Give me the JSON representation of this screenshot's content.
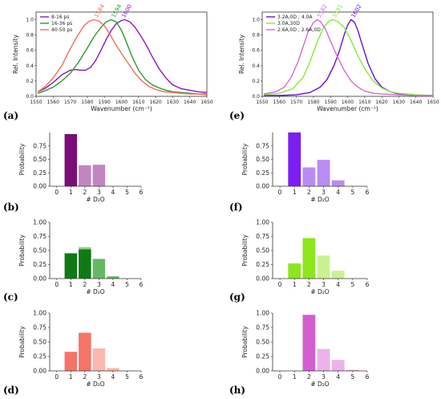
{
  "panel_labels": [
    "(a)",
    "(b)",
    "(c)",
    "(d)",
    "(e)",
    "(f)",
    "(g)",
    "(h)"
  ],
  "chart_data": [
    {
      "id": "a",
      "type": "line",
      "xlabel": "Wavenumber (cm⁻¹)",
      "ylabel": "Rel. Intensity",
      "xlim": [
        1550,
        1650
      ],
      "ylim": [
        0,
        1.1
      ],
      "xticks": [
        1550,
        1560,
        1570,
        1580,
        1590,
        1600,
        1610,
        1620,
        1630,
        1640,
        1650
      ],
      "yticks": [
        0.0,
        0.2,
        0.4,
        0.6,
        0.8,
        1.0
      ],
      "legend_position": "top-left",
      "series": [
        {
          "name": "8-16 ps",
          "color": "#8b1bbf",
          "x": [
            1551,
            1555,
            1560,
            1565,
            1570,
            1573,
            1576,
            1579,
            1582,
            1585,
            1588,
            1591,
            1594,
            1597,
            1600,
            1602,
            1605,
            1608,
            1611,
            1614,
            1618,
            1622,
            1626,
            1630,
            1635,
            1640,
            1645,
            1650
          ],
          "y": [
            0.06,
            0.1,
            0.18,
            0.28,
            0.34,
            0.35,
            0.34,
            0.34,
            0.38,
            0.47,
            0.6,
            0.74,
            0.86,
            0.95,
            0.99,
            1.0,
            0.97,
            0.9,
            0.8,
            0.69,
            0.52,
            0.36,
            0.24,
            0.15,
            0.1,
            0.08,
            0.06,
            0.05
          ]
        },
        {
          "name": "16-36 ps",
          "color": "#2e9a2e",
          "x": [
            1551,
            1555,
            1560,
            1565,
            1570,
            1575,
            1580,
            1584,
            1588,
            1591,
            1594,
            1597,
            1600,
            1603,
            1606,
            1610,
            1614,
            1618,
            1622,
            1626,
            1630,
            1635,
            1640,
            1645,
            1650
          ],
          "y": [
            0.04,
            0.07,
            0.12,
            0.2,
            0.3,
            0.45,
            0.63,
            0.78,
            0.9,
            0.97,
            1.0,
            0.97,
            0.86,
            0.7,
            0.53,
            0.34,
            0.22,
            0.15,
            0.11,
            0.08,
            0.06,
            0.05,
            0.04,
            0.03,
            0.03
          ]
        },
        {
          "name": "40-50 ps",
          "color": "#f36f5a",
          "x": [
            1551,
            1555,
            1560,
            1565,
            1570,
            1574,
            1578,
            1581,
            1584,
            1587,
            1590,
            1593,
            1596,
            1600,
            1604,
            1608,
            1612,
            1616,
            1620,
            1625,
            1630,
            1635,
            1640,
            1645,
            1650
          ],
          "y": [
            0.06,
            0.12,
            0.24,
            0.4,
            0.62,
            0.78,
            0.92,
            0.98,
            1.0,
            0.98,
            0.92,
            0.82,
            0.7,
            0.56,
            0.43,
            0.3,
            0.2,
            0.13,
            0.09,
            0.06,
            0.05,
            0.04,
            0.03,
            0.03,
            0.02
          ]
        }
      ],
      "annotations": [
        {
          "text": "1584",
          "x": 1584,
          "color": "#f36f5a"
        },
        {
          "text": "1594",
          "x": 1594,
          "color": "#2e9a2e"
        },
        {
          "text": "1600",
          "x": 1600,
          "color": "#8b1bbf"
        }
      ]
    },
    {
      "id": "e",
      "type": "line",
      "xlabel": "Wavenumber (cm⁻¹)",
      "ylabel": "Rel. Intensity",
      "xlim": [
        1550,
        1650
      ],
      "ylim": [
        0,
        1.1
      ],
      "xticks": [
        1550,
        1560,
        1570,
        1580,
        1590,
        1600,
        1610,
        1620,
        1630,
        1640,
        1650
      ],
      "yticks": [
        0.0,
        0.2,
        0.4,
        0.6,
        0.8,
        1.0
      ],
      "legend_position": "top-left",
      "series": [
        {
          "name": "3.2A,0D ; 4.0A",
          "color": "#6a0fd6",
          "x": [
            1551,
            1560,
            1570,
            1578,
            1584,
            1588,
            1592,
            1595,
            1598,
            1600,
            1602,
            1604,
            1606,
            1609,
            1612,
            1616,
            1620,
            1625,
            1630,
            1640,
            1650
          ],
          "y": [
            0.01,
            0.01,
            0.02,
            0.05,
            0.12,
            0.22,
            0.4,
            0.58,
            0.8,
            0.93,
            1.0,
            0.97,
            0.86,
            0.64,
            0.43,
            0.23,
            0.12,
            0.06,
            0.03,
            0.01,
            0.01
          ]
        },
        {
          "name": "3.0A,30D",
          "color": "#88e83a",
          "x": [
            1551,
            1560,
            1568,
            1574,
            1578,
            1582,
            1586,
            1589,
            1591,
            1594,
            1598,
            1602,
            1606,
            1610,
            1615,
            1620,
            1625,
            1630,
            1640,
            1650
          ],
          "y": [
            0.02,
            0.04,
            0.1,
            0.25,
            0.45,
            0.7,
            0.9,
            0.98,
            1.0,
            0.98,
            0.9,
            0.73,
            0.53,
            0.36,
            0.2,
            0.11,
            0.06,
            0.04,
            0.02,
            0.01
          ]
        },
        {
          "name": "2.6A,0D ; 2.6A,0D",
          "color": "#d36ad8",
          "x": [
            1551,
            1558,
            1563,
            1567,
            1571,
            1574,
            1577,
            1580,
            1582,
            1584,
            1587,
            1590,
            1594,
            1598,
            1602,
            1606,
            1610,
            1615,
            1620,
            1630,
            1640,
            1650
          ],
          "y": [
            0.03,
            0.06,
            0.12,
            0.25,
            0.45,
            0.65,
            0.85,
            0.96,
            1.0,
            0.98,
            0.88,
            0.72,
            0.52,
            0.34,
            0.2,
            0.12,
            0.07,
            0.04,
            0.03,
            0.02,
            0.01,
            0.01
          ]
        }
      ],
      "annotations": [
        {
          "text": "1582",
          "x": 1582,
          "color": "#d36ad8"
        },
        {
          "text": "1591",
          "x": 1591,
          "color": "#88e83a"
        },
        {
          "text": "1602",
          "x": 1602,
          "color": "#6a0fd6"
        }
      ]
    },
    {
      "id": "b",
      "type": "bar",
      "xlabel": "# D₂O",
      "ylabel": "Probability",
      "xlim": [
        -0.5,
        6
      ],
      "ylim": [
        0,
        1.0
      ],
      "xticks": [
        0,
        1,
        2,
        3,
        4,
        5,
        6
      ],
      "yticks": [
        0.0,
        0.25,
        0.5,
        0.75
      ],
      "ytick_labels": [
        "0.00",
        "0.25",
        "0.50",
        "0.75"
      ],
      "bars": [
        {
          "x": 1,
          "value": 0.97,
          "color": "#7b0e76"
        },
        {
          "x": 2,
          "value": 0.02,
          "color": "#7b0e76"
        },
        {
          "x": 2,
          "value": 0.39,
          "color": "#c086c0"
        },
        {
          "x": 3,
          "value": 0.4,
          "color": "#c086c0"
        }
      ]
    },
    {
      "id": "c",
      "type": "bar",
      "xlabel": "# D₂O",
      "ylabel": "Probability",
      "xlim": [
        -0.5,
        6
      ],
      "ylim": [
        0,
        1.0
      ],
      "xticks": [
        0,
        1,
        2,
        3,
        4,
        5,
        6
      ],
      "yticks": [
        0.0,
        0.25,
        0.5,
        0.75,
        1.0
      ],
      "ytick_labels": [
        "0.00",
        "0.25",
        "0.50",
        "0.75",
        "1.00"
      ],
      "bars": [
        {
          "x": 1,
          "value": 0.45,
          "color": "#0f7a14"
        },
        {
          "x": 2,
          "value": 0.56,
          "color": "#8ed28e"
        },
        {
          "x": 2,
          "value": 0.52,
          "color": "#0f7a14"
        },
        {
          "x": 3,
          "value": 0.35,
          "color": "#64b864"
        },
        {
          "x": 4,
          "value": 0.04,
          "color": "#64b864"
        }
      ]
    },
    {
      "id": "d",
      "type": "bar",
      "xlabel": "# D₂O",
      "ylabel": "Probability",
      "xlim": [
        -0.5,
        6
      ],
      "ylim": [
        0,
        1.0
      ],
      "xticks": [
        0,
        1,
        2,
        3,
        4,
        5,
        6
      ],
      "yticks": [
        0.0,
        0.25,
        0.5,
        0.75,
        1.0
      ],
      "ytick_labels": [
        "0.00",
        "0.25",
        "0.50",
        "0.75",
        "1.00"
      ],
      "bars": [
        {
          "x": 1,
          "value": 0.33,
          "color": "#f57468"
        },
        {
          "x": 2,
          "value": 0.66,
          "color": "#f57468"
        },
        {
          "x": 3,
          "value": 0.39,
          "color": "#f9b8b0"
        },
        {
          "x": 4,
          "value": 0.05,
          "color": "#f9b8b0"
        }
      ]
    },
    {
      "id": "f",
      "type": "bar",
      "xlabel": "# D₂O",
      "ylabel": "Probability",
      "xlim": [
        -0.5,
        6
      ],
      "ylim": [
        0,
        1.0
      ],
      "xticks": [
        0,
        1,
        2,
        3,
        4,
        5,
        6
      ],
      "yticks": [
        0.0,
        0.25,
        0.5,
        0.75
      ],
      "ytick_labels": [
        "0.00",
        "0.25",
        "0.50",
        "0.75"
      ],
      "bars": [
        {
          "x": 1,
          "value": 1.0,
          "color": "#7c1ef0"
        },
        {
          "x": 2,
          "value": 0.35,
          "color": "#b98bf5"
        },
        {
          "x": 3,
          "value": 0.49,
          "color": "#b98bf5"
        },
        {
          "x": 4,
          "value": 0.11,
          "color": "#b98bf5"
        }
      ]
    },
    {
      "id": "g",
      "type": "bar",
      "xlabel": "# D₂O",
      "ylabel": "Probability",
      "xlim": [
        -0.5,
        6
      ],
      "ylim": [
        0,
        1.0
      ],
      "xticks": [
        0,
        1,
        2,
        3,
        4,
        5,
        6
      ],
      "yticks": [
        0.0,
        0.25,
        0.5,
        0.75,
        1.0
      ],
      "ytick_labels": [
        "0.00",
        "0.25",
        "0.50",
        "0.75",
        "1.00"
      ],
      "bars": [
        {
          "x": 1,
          "value": 0.27,
          "color": "#8ce61e"
        },
        {
          "x": 2,
          "value": 0.72,
          "color": "#8ce61e"
        },
        {
          "x": 3,
          "value": 0.41,
          "color": "#c9f28f"
        },
        {
          "x": 4,
          "value": 0.14,
          "color": "#c9f28f"
        }
      ]
    },
    {
      "id": "h",
      "type": "bar",
      "xlabel": "# D₂O",
      "ylabel": "Probability",
      "xlim": [
        -0.5,
        6
      ],
      "ylim": [
        0,
        1.0
      ],
      "xticks": [
        0,
        1,
        2,
        3,
        4,
        5,
        6
      ],
      "yticks": [
        0.0,
        0.25,
        0.5,
        0.75,
        1.0
      ],
      "ytick_labels": [
        "0.00",
        "0.25",
        "0.50",
        "0.75",
        "1.00"
      ],
      "bars": [
        {
          "x": 2,
          "value": 0.97,
          "color": "#d45ed0"
        },
        {
          "x": 3,
          "value": 0.38,
          "color": "#ecb2ea"
        },
        {
          "x": 4,
          "value": 0.19,
          "color": "#ecb2ea"
        },
        {
          "x": 5,
          "value": 0.02,
          "color": "#ecb2ea"
        }
      ]
    }
  ]
}
